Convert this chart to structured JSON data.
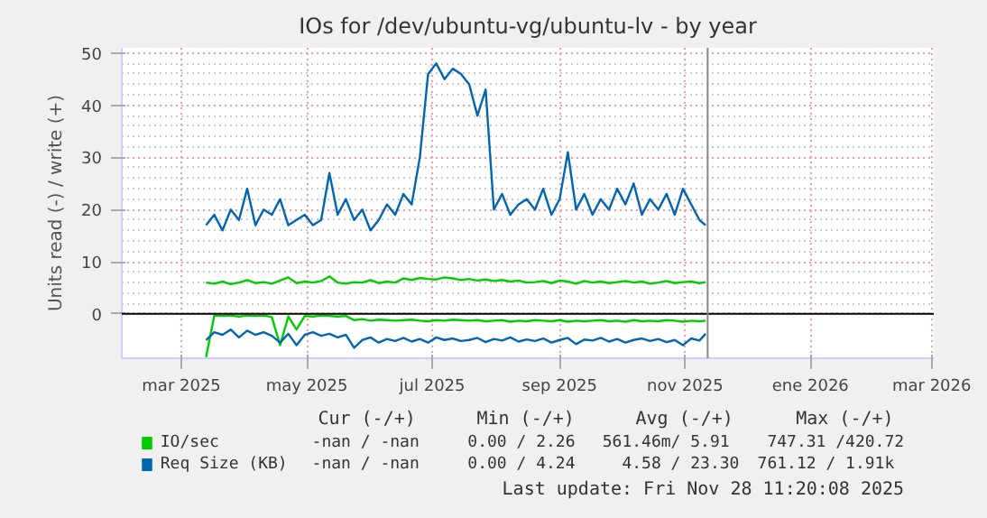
{
  "chart_data": {
    "type": "line",
    "title": "IOs for /dev/ubuntu-vg/ubuntu-lv - by year",
    "ylabel": "Units read (-) / write (+)",
    "x": [
      "2025-03-28",
      "2025-04-01",
      "2025-04-05",
      "2025-04-09",
      "2025-04-13",
      "2025-04-17",
      "2025-04-21",
      "2025-04-25",
      "2025-04-29",
      "2025-05-03",
      "2025-05-07",
      "2025-05-11",
      "2025-05-15",
      "2025-05-19",
      "2025-05-23",
      "2025-05-27",
      "2025-05-31",
      "2025-06-04",
      "2025-06-08",
      "2025-06-12",
      "2025-06-16",
      "2025-06-20",
      "2025-06-24",
      "2025-06-28",
      "2025-07-02",
      "2025-07-06",
      "2025-07-10",
      "2025-07-14",
      "2025-07-18",
      "2025-07-22",
      "2025-07-26",
      "2025-07-30",
      "2025-08-03",
      "2025-08-07",
      "2025-08-11",
      "2025-08-15",
      "2025-08-19",
      "2025-08-23",
      "2025-08-27",
      "2025-08-31",
      "2025-09-04",
      "2025-09-08",
      "2025-09-12",
      "2025-09-16",
      "2025-09-20",
      "2025-09-24",
      "2025-09-28",
      "2025-10-02",
      "2025-10-06",
      "2025-10-10",
      "2025-10-14",
      "2025-10-18",
      "2025-10-22",
      "2025-10-26",
      "2025-10-30",
      "2025-11-03",
      "2025-11-07",
      "2025-11-11",
      "2025-11-15",
      "2025-11-19",
      "2025-11-23",
      "2025-11-26"
    ],
    "series": [
      {
        "name": "IO/sec",
        "color": "#00cc00",
        "values": [
          6,
          5.8,
          6.2,
          5.7,
          6,
          6.5,
          5.9,
          6.1,
          5.8,
          6.4,
          7,
          5.9,
          6.2,
          6,
          6.3,
          7.2,
          6,
          5.8,
          6.1,
          6,
          6.5,
          5.9,
          6.2,
          6,
          6.8,
          6.5,
          6.9,
          6.7,
          6.6,
          7,
          6.8,
          6.5,
          6.7,
          6.4,
          6.6,
          6.3,
          6.5,
          6.2,
          6.4,
          6,
          6.1,
          6.3,
          5.9,
          6.4,
          6.2,
          5.8,
          6.3,
          6,
          6.2,
          5.9,
          6.1,
          6.3,
          6,
          6.2,
          5.8,
          6,
          6.3,
          5.9,
          6.1,
          6.2,
          5.9,
          6.1
        ]
      },
      {
        "color": "#00cc00",
        "values": [
          -8.3,
          -0.3,
          -0.4,
          -0.3,
          -0.5,
          -0.3,
          -0.4,
          -0.3,
          -0.6,
          -6,
          -0.5,
          -3,
          -0.4,
          -0.5,
          -0.3,
          -0.4,
          -0.5,
          -0.4,
          -1.2,
          -1,
          -1.3,
          -1.1,
          -1.2,
          -1.3,
          -1.2,
          -1.1,
          -1.3,
          -1.4,
          -1.2,
          -1.3,
          -1.1,
          -1.2,
          -1.3,
          -1.2,
          -1.4,
          -1.3,
          -1.2,
          -1.5,
          -1.3,
          -1.4,
          -1.2,
          -1.3,
          -1.4,
          -1.2,
          -1.5,
          -1.3,
          -1.4,
          -1.3,
          -1.2,
          -1.4,
          -1.3,
          -1.5,
          -1.2,
          -1.4,
          -1.3,
          -1.4,
          -1.2,
          -1.3,
          -1.5,
          -1.3,
          -1.4,
          -1.3
        ]
      },
      {
        "name": "Req Size (KB)",
        "color": "#0066b3",
        "values": [
          17,
          19,
          16,
          20,
          18,
          24,
          17,
          20,
          19,
          22,
          17,
          18,
          19,
          17,
          18,
          27,
          19,
          22,
          18,
          20,
          16,
          18,
          21,
          19,
          23,
          21,
          30,
          46,
          48,
          45,
          47,
          46,
          44,
          38,
          43,
          20,
          23,
          19,
          21,
          22,
          20,
          24,
          19,
          22,
          31,
          20,
          23,
          19,
          22,
          20,
          24,
          21,
          25,
          19,
          22,
          20,
          23,
          19,
          24,
          21,
          18,
          17
        ]
      },
      {
        "color": "#0066b3",
        "values": [
          -5,
          -3.5,
          -4,
          -3,
          -4.5,
          -3.2,
          -4,
          -3.5,
          -4.2,
          -5.5,
          -3.8,
          -6,
          -4,
          -3.5,
          -4.2,
          -3.8,
          -4.5,
          -4,
          -6.5,
          -5,
          -4.5,
          -5.5,
          -4.8,
          -5.2,
          -4.6,
          -5.3,
          -4.8,
          -5.5,
          -4.5,
          -5,
          -4.7,
          -5.2,
          -5,
          -4.6,
          -5.4,
          -4.8,
          -5.1,
          -4.5,
          -5.3,
          -4.9,
          -5.2,
          -4.7,
          -5.5,
          -5,
          -4.6,
          -5.8,
          -4.9,
          -5.1,
          -4.6,
          -5.3,
          -4.8,
          -5.5,
          -5,
          -4.7,
          -5.2,
          -4.8,
          -5.4,
          -5,
          -6,
          -4.7,
          -5.1,
          -3.8
        ]
      }
    ],
    "xlim": [
      "2025-02-15",
      "2026-03-17"
    ],
    "xticks": [
      {
        "value": "2025-03-16",
        "label": "mar 2025"
      },
      {
        "value": "2025-05-16",
        "label": "may 2025"
      },
      {
        "value": "2025-07-16",
        "label": "jul 2025"
      },
      {
        "value": "2025-09-16",
        "label": "sep 2025"
      },
      {
        "value": "2025-11-16",
        "label": "nov 2025"
      },
      {
        "value": "2026-01-16",
        "label": "ene 2026"
      },
      {
        "value": "2026-03-16",
        "label": "mar 2026"
      }
    ],
    "ylim": [
      -8.5,
      51
    ],
    "yticks": [
      0,
      10,
      20,
      30,
      40,
      50
    ],
    "ref_lines": [
      {
        "axis": "y",
        "value": 0,
        "color": "#000000"
      },
      {
        "axis": "x",
        "value": "2025-11-27",
        "color": "#888888"
      }
    ],
    "grid": true,
    "legend": "bottom",
    "annotations": [
      "Cur (-/+)",
      "Min (-/+)",
      "Avg (-/+)",
      "Max (-/+)",
      "-nan /  -nan",
      "0.00 /  2.26",
      "561.46m/  5.91",
      "747.31 /420.72",
      "-nan /  -nan",
      "0.00 /  4.24",
      "4.58 / 23.30",
      "761.12 /  1.91k",
      "Last update: Fri Nov 28 11:20:08 2025"
    ]
  }
}
